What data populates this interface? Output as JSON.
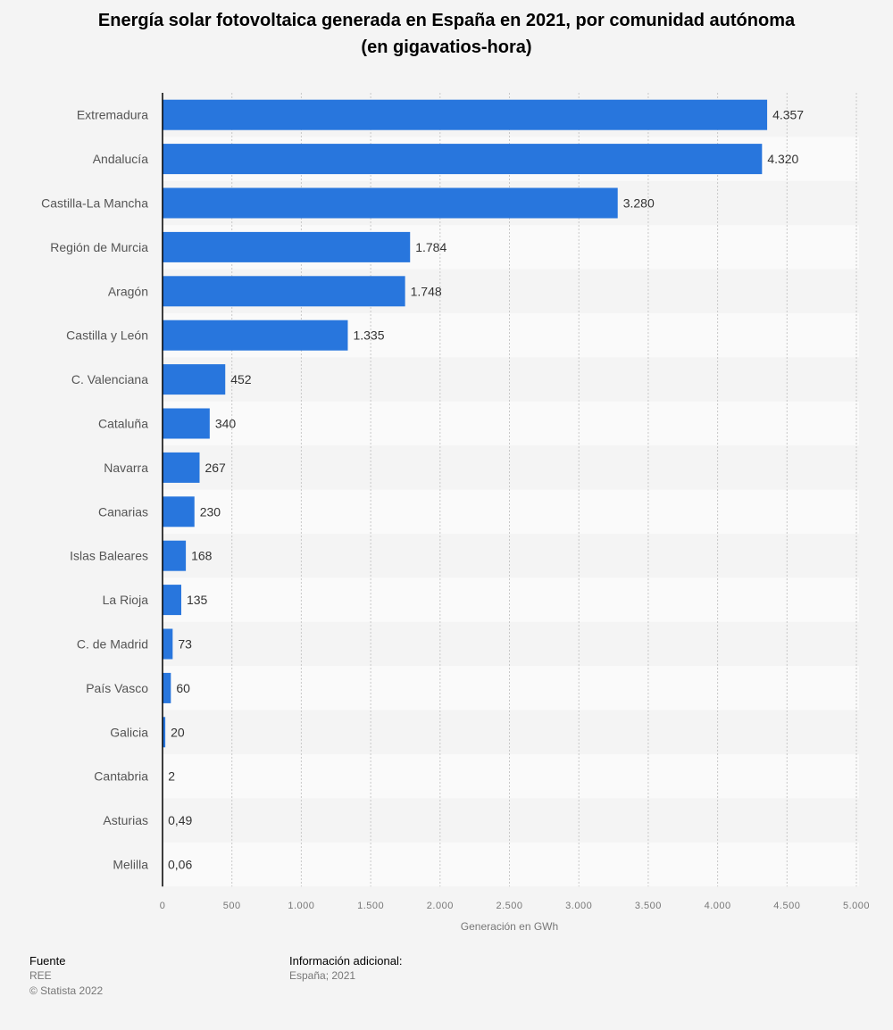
{
  "chart_data": {
    "type": "bar",
    "orientation": "horizontal",
    "title": "Energía solar fotovoltaica generada en España en 2021, por comunidad autónoma (en gigavatios-hora)",
    "title_lines": [
      "Energía solar fotovoltaica generada en España en 2021, por comunidad autónoma",
      "(en gigavatios-hora)"
    ],
    "categories": [
      "Extremadura",
      "Andalucía",
      "Castilla-La Mancha",
      "Región de Murcia",
      "Aragón",
      "Castilla y León",
      "C. Valenciana",
      "Cataluña",
      "Navarra",
      "Canarias",
      "Islas Baleares",
      "La Rioja",
      "C. de Madrid",
      "País Vasco",
      "Galicia",
      "Cantabria",
      "Asturias",
      "Melilla"
    ],
    "values": [
      4357,
      4320,
      3280,
      1784,
      1748,
      1335,
      452,
      340,
      267,
      230,
      168,
      135,
      73,
      60,
      20,
      2,
      0.49,
      0.06
    ],
    "data_labels": [
      "4.357",
      "4.320",
      "3.280",
      "1.784",
      "1.748",
      "1.335",
      "452",
      "340",
      "267",
      "230",
      "168",
      "135",
      "73",
      "60",
      "20",
      "2",
      "0,49",
      "0,06"
    ],
    "xlabel": "Generación en GWh",
    "xlim": [
      0,
      5000
    ],
    "ticks": [
      0,
      500,
      1000,
      1500,
      2000,
      2500,
      3000,
      3500,
      4000,
      4500,
      5000
    ],
    "tick_labels": [
      "0",
      "500",
      "1.000",
      "1.500",
      "2.000",
      "2.500",
      "3.000",
      "3.500",
      "4.000",
      "4.500",
      "5.000"
    ],
    "grid": true,
    "bar_color": "#2876dd"
  },
  "footer": {
    "source_heading": "Fuente",
    "source": "REE",
    "copyright": "© Statista 2022",
    "info_heading": "Información adicional:",
    "info": "España; 2021"
  }
}
